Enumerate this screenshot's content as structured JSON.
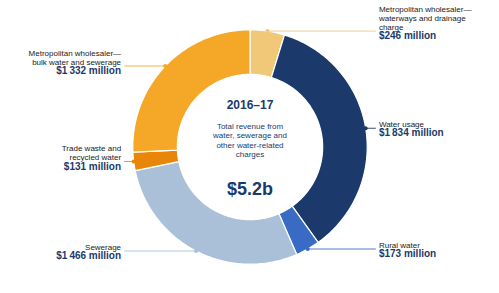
{
  "chart_data": {
    "type": "donut",
    "title": "2016–17",
    "subtitle": "Total revenue from\nwater, sewerage and\nother water-related\ncharges",
    "annotations": [
      "$5.2b"
    ],
    "categories": [
      "Metropolitan wholesaler—\nwaterways and drainage\ncharge",
      "Water usage",
      "Rural water",
      "Sewerage",
      "Trade waste and\nrecycled water",
      "Metropolitan wholesaler—\nbulk water and sewerage"
    ],
    "values": [
      246,
      1834,
      173,
      1466,
      131,
      1332
    ],
    "value_labels": [
      "$246 million",
      "$1 834 million",
      "$173 million",
      "$1 466 million",
      "$131 million",
      "$1 332 million"
    ],
    "colors": [
      "#F0C878",
      "#1B3A6B",
      "#3A6BC4",
      "#AABFD8",
      "#E8860A",
      "#F5A828"
    ],
    "data_labels": true
  }
}
